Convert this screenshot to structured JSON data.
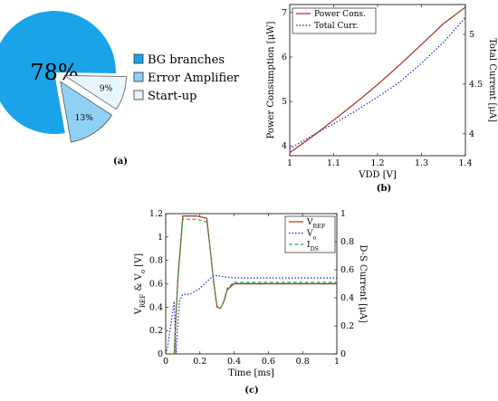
{
  "chart_data": [
    {
      "type": "pie",
      "caption": "(a)",
      "slices": [
        {
          "label": "BG branches",
          "value": 78,
          "value_label": "78%",
          "color": "#1aa3e8"
        },
        {
          "label": "Error Amplifier",
          "value": 13,
          "value_label": "13%",
          "color": "#8fd0f5"
        },
        {
          "label": "Start-up",
          "value": 9,
          "value_label": "9%",
          "color": "#e8f6fd"
        }
      ]
    },
    {
      "type": "line",
      "caption": "(b)",
      "xlabel": "VDD [V]",
      "ylabel": "Power Consumption [μW]",
      "ylabel_right": "Total Current [μA]",
      "xlim": [
        1.0,
        1.4
      ],
      "ylim": [
        3.78,
        7.18
      ],
      "ylim_right": [
        3.78,
        5.3
      ],
      "x_ticks": [
        1,
        1.1,
        1.2,
        1.3,
        1.4
      ],
      "x_tick_labels": [
        "1",
        "1.1",
        "1.2",
        "1.3",
        "1.4"
      ],
      "y_ticks": [
        4,
        5,
        6,
        7
      ],
      "y_tick_labels": [
        "4",
        "5",
        "6",
        "7"
      ],
      "y_right_ticks": [
        4,
        4.5,
        5
      ],
      "y_right_tick_labels": [
        "4",
        "4.5",
        "5"
      ],
      "legend_position": "top-left",
      "series": [
        {
          "name": "Power Cons.",
          "axis": "left",
          "color": "#a52a1a",
          "style": "solid",
          "x": [
            1.0,
            1.05,
            1.1,
            1.15,
            1.2,
            1.25,
            1.3,
            1.35,
            1.4
          ],
          "values": [
            3.85,
            4.2,
            4.58,
            4.97,
            5.38,
            5.82,
            6.28,
            6.75,
            7.12
          ]
        },
        {
          "name": "Total Curr.",
          "axis": "right",
          "color": "#2020b0",
          "style": "dotted",
          "x": [
            1.0,
            1.05,
            1.1,
            1.15,
            1.2,
            1.25,
            1.3,
            1.35,
            1.4
          ],
          "values": [
            3.85,
            3.98,
            4.1,
            4.23,
            4.37,
            4.52,
            4.71,
            4.92,
            5.17
          ]
        }
      ]
    },
    {
      "type": "line",
      "caption": "(c)",
      "xlabel": "Time [ms]",
      "ylabel_parts": [
        {
          "t": "V"
        },
        {
          "t": "REF",
          "sub": true
        },
        {
          "t": " & V"
        },
        {
          "t": "o",
          "sub": true
        },
        {
          "t": " [V]"
        }
      ],
      "ylabel_right": "D-S Current [μA]",
      "xlim": [
        0,
        1
      ],
      "ylim": [
        0,
        1.2
      ],
      "ylim_right": [
        0,
        1
      ],
      "x_ticks": [
        0,
        0.2,
        0.4,
        0.6,
        0.8,
        1
      ],
      "x_tick_labels": [
        "0",
        "0.2",
        "0.4",
        "0.6",
        "0.8",
        "1"
      ],
      "y_ticks": [
        0,
        0.2,
        0.4,
        0.6,
        0.8,
        1,
        1.2
      ],
      "y_tick_labels": [
        "0",
        "0.2",
        "0.4",
        "0.6",
        "0.8",
        "1",
        "1.2"
      ],
      "y_right_ticks": [
        0,
        0.2,
        0.4,
        0.6,
        0.8,
        1
      ],
      "y_right_tick_labels": [
        "0",
        "0.2",
        "0.4",
        "0.6",
        "0.8",
        "1"
      ],
      "legend_position": "top-right",
      "series": [
        {
          "name_parts": [
            {
              "t": "V"
            },
            {
              "t": "REF",
              "sub": true
            }
          ],
          "axis": "left",
          "color": "#a52a1a",
          "style": "solid",
          "x": [
            0,
            0.05,
            0.07,
            0.1,
            0.18,
            0.24,
            0.26,
            0.28,
            0.3,
            0.32,
            0.34,
            0.36,
            0.4,
            0.5,
            1.0
          ],
          "values": [
            0,
            0.0,
            0.62,
            1.18,
            1.18,
            1.16,
            0.9,
            0.62,
            0.4,
            0.39,
            0.45,
            0.55,
            0.6,
            0.6,
            0.6
          ]
        },
        {
          "name_parts": [
            {
              "t": "V"
            },
            {
              "t": "o",
              "sub": true
            }
          ],
          "axis": "left",
          "color": "#2020b0",
          "style": "dotted",
          "x": [
            0,
            0.01,
            0.03,
            0.05,
            0.06,
            0.08,
            0.1,
            0.12,
            0.14,
            0.2,
            0.22,
            0.24,
            0.28,
            0.3,
            0.34,
            0.4,
            1.0
          ],
          "values": [
            0,
            0.05,
            0.25,
            0.45,
            0.0,
            0.45,
            0.51,
            0.51,
            0.51,
            0.56,
            0.59,
            0.62,
            0.67,
            0.67,
            0.66,
            0.65,
            0.65
          ]
        },
        {
          "name_parts": [
            {
              "t": "I"
            },
            {
              "t": "DS",
              "sub": true
            }
          ],
          "axis": "right",
          "color": "#22b14c",
          "style": "dashed",
          "x": [
            0,
            0.05,
            0.07,
            0.1,
            0.18,
            0.24,
            0.26,
            0.28,
            0.3,
            0.32,
            0.34,
            0.36,
            0.4,
            0.5,
            1.0
          ],
          "values": [
            0,
            0.0,
            0.5,
            0.96,
            0.96,
            0.94,
            0.75,
            0.52,
            0.34,
            0.32,
            0.38,
            0.47,
            0.51,
            0.51,
            0.51
          ]
        }
      ]
    }
  ]
}
